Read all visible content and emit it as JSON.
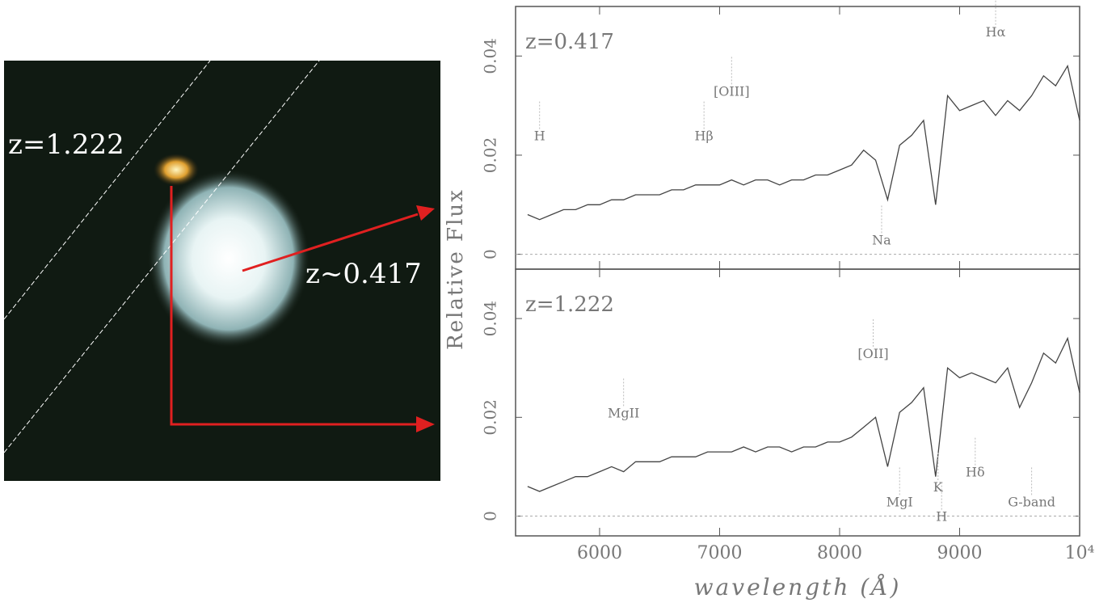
{
  "image": {
    "labels": [
      "z=1.222",
      "z~0.417"
    ]
  },
  "chart_data": [
    {
      "type": "line",
      "title": "z=0.417",
      "ylabel": "Relative Flux",
      "x": [
        5400,
        5500,
        5600,
        5700,
        5800,
        5900,
        6000,
        6100,
        6200,
        6300,
        6400,
        6500,
        6600,
        6700,
        6800,
        6900,
        7000,
        7100,
        7200,
        7300,
        7400,
        7500,
        7600,
        7700,
        7800,
        7900,
        8000,
        8100,
        8200,
        8300,
        8400,
        8500,
        8600,
        8700,
        8800,
        8900,
        9000,
        9100,
        9200,
        9300,
        9400,
        9500,
        9600,
        9700,
        9800,
        9900,
        10000
      ],
      "values": [
        0.008,
        0.007,
        0.008,
        0.009,
        0.009,
        0.01,
        0.01,
        0.011,
        0.011,
        0.012,
        0.012,
        0.012,
        0.013,
        0.013,
        0.014,
        0.014,
        0.014,
        0.015,
        0.014,
        0.015,
        0.015,
        0.014,
        0.015,
        0.015,
        0.016,
        0.016,
        0.017,
        0.018,
        0.021,
        0.019,
        0.011,
        0.022,
        0.024,
        0.027,
        0.01,
        0.032,
        0.029,
        0.03,
        0.031,
        0.028,
        0.031,
        0.029,
        0.032,
        0.036,
        0.034,
        0.038,
        0.027
      ],
      "color": "#444",
      "xlim": [
        5300,
        10000
      ],
      "ylim": [
        -0.003,
        0.05
      ],
      "yticks": [
        0,
        0.02,
        0.04
      ],
      "annotations": [
        {
          "text": "H",
          "x": 5500,
          "y": 0.023
        },
        {
          "text": "Hβ",
          "x": 6870,
          "y": 0.023
        },
        {
          "text": "[OIII]",
          "x": 7100,
          "y": 0.032
        },
        {
          "text": "Na",
          "x": 8350,
          "y": 0.002
        },
        {
          "text": "Hα",
          "x": 9300,
          "y": 0.044
        }
      ]
    },
    {
      "type": "line",
      "title": "z=1.222",
      "xlabel": "wavelength (Å)",
      "x": [
        5400,
        5500,
        5600,
        5700,
        5800,
        5900,
        6000,
        6100,
        6200,
        6300,
        6400,
        6500,
        6600,
        6700,
        6800,
        6900,
        7000,
        7100,
        7200,
        7300,
        7400,
        7500,
        7600,
        7700,
        7800,
        7900,
        8000,
        8100,
        8200,
        8300,
        8400,
        8500,
        8600,
        8700,
        8800,
        8900,
        9000,
        9100,
        9200,
        9300,
        9400,
        9500,
        9600,
        9700,
        9800,
        9900,
        10000
      ],
      "values": [
        0.006,
        0.005,
        0.006,
        0.007,
        0.008,
        0.008,
        0.009,
        0.01,
        0.009,
        0.011,
        0.011,
        0.011,
        0.012,
        0.012,
        0.012,
        0.013,
        0.013,
        0.013,
        0.014,
        0.013,
        0.014,
        0.014,
        0.013,
        0.014,
        0.014,
        0.015,
        0.015,
        0.016,
        0.018,
        0.02,
        0.01,
        0.021,
        0.023,
        0.026,
        0.008,
        0.03,
        0.028,
        0.029,
        0.028,
        0.027,
        0.03,
        0.022,
        0.027,
        0.033,
        0.031,
        0.036,
        0.025
      ],
      "color": "#444",
      "xlim": [
        5300,
        10000
      ],
      "ylim": [
        -0.004,
        0.05
      ],
      "xticks": [
        6000,
        7000,
        8000,
        9000,
        {
          "value": 10000,
          "label": "10⁴"
        }
      ],
      "yticks": [
        0,
        0.02,
        0.04
      ],
      "annotations": [
        {
          "text": "MgII",
          "x": 6200,
          "y": 0.02
        },
        {
          "text": "[OII]",
          "x": 8280,
          "y": 0.032
        },
        {
          "text": "MgI",
          "x": 8500,
          "y": 0.002
        },
        {
          "text": "K",
          "x": 8820,
          "y": 0.005
        },
        {
          "text": "H",
          "x": 8850,
          "y": -0.001
        },
        {
          "text": "Hδ",
          "x": 9130,
          "y": 0.008
        },
        {
          "text": "G-band",
          "x": 9600,
          "y": 0.002
        }
      ]
    }
  ]
}
